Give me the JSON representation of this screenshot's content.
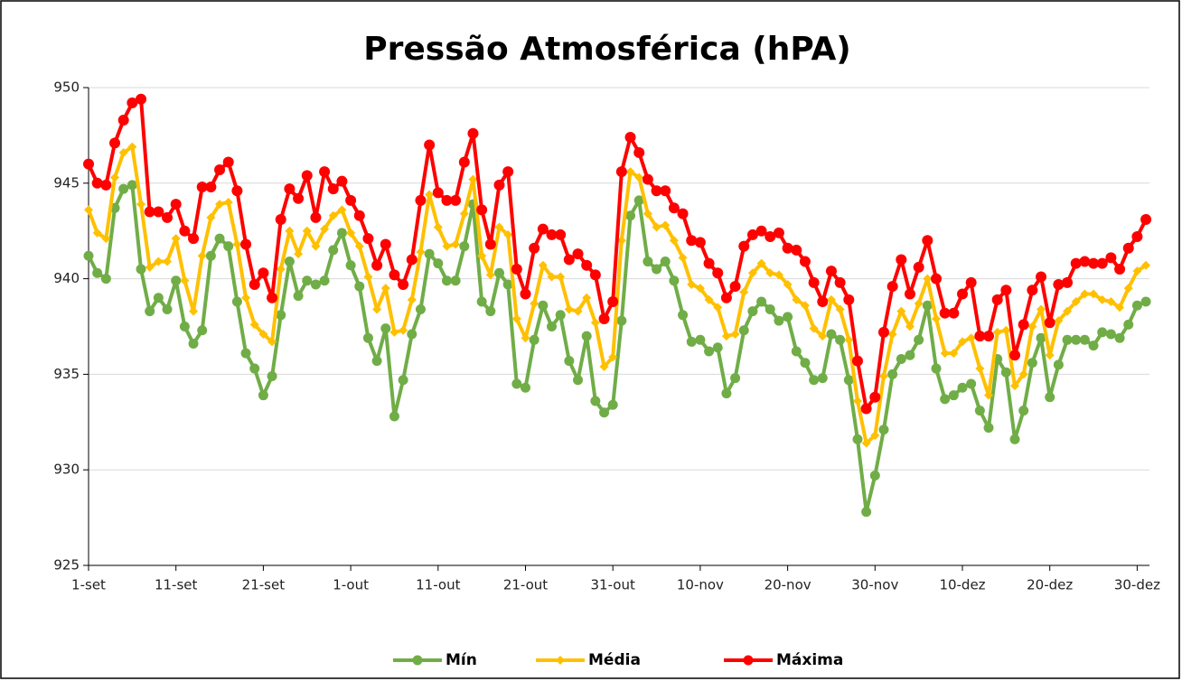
{
  "chart_data": {
    "type": "line",
    "title": "Pressão Atmosférica (hPA)",
    "categories": [
      "1-set",
      null,
      null,
      null,
      null,
      null,
      null,
      null,
      null,
      null,
      "11-set",
      null,
      null,
      null,
      null,
      null,
      null,
      null,
      null,
      null,
      "21-set",
      null,
      null,
      null,
      null,
      null,
      null,
      null,
      null,
      null,
      "1-out",
      null,
      null,
      null,
      null,
      null,
      null,
      null,
      null,
      null,
      "11-out",
      null,
      null,
      null,
      null,
      null,
      null,
      null,
      null,
      null,
      "21-out",
      null,
      null,
      null,
      null,
      null,
      null,
      null,
      null,
      null,
      "31-out",
      null,
      null,
      null,
      null,
      null,
      null,
      null,
      null,
      null,
      "10-nov",
      null,
      null,
      null,
      null,
      null,
      null,
      null,
      null,
      null,
      "20-nov",
      null,
      null,
      null,
      null,
      null,
      null,
      null,
      null,
      null,
      "30-nov",
      null,
      null,
      null,
      null,
      null,
      null,
      null,
      null,
      null,
      "10-dez",
      null,
      null,
      null,
      null,
      null,
      null,
      null,
      null,
      null,
      "20-dez",
      null,
      null,
      null,
      null,
      null,
      null,
      null,
      null,
      null,
      "30-dez",
      null
    ],
    "series": [
      {
        "name": "Mín",
        "color": "#70ad47",
        "marker": "circle",
        "values": [
          941.2,
          940.3,
          940.0,
          943.7,
          944.7,
          944.9,
          940.5,
          938.3,
          939.0,
          938.4,
          939.9,
          937.5,
          936.6,
          937.3,
          941.2,
          942.1,
          941.7,
          938.8,
          936.1,
          935.3,
          933.9,
          934.9,
          938.1,
          940.9,
          939.1,
          939.9,
          939.7,
          939.9,
          941.5,
          942.4,
          940.7,
          939.6,
          936.9,
          935.7,
          937.4,
          932.8,
          934.7,
          937.1,
          938.4,
          941.3,
          940.8,
          939.9,
          939.9,
          941.7,
          943.9,
          938.8,
          938.3,
          940.3,
          939.7,
          934.5,
          934.3,
          936.8,
          938.6,
          937.5,
          938.1,
          935.7,
          934.7,
          937.0,
          933.6,
          933.0,
          933.4,
          937.8,
          943.3,
          944.1,
          940.9,
          940.5,
          940.9,
          939.9,
          938.1,
          936.7,
          936.8,
          936.2,
          936.4,
          934.0,
          934.8,
          937.3,
          938.3,
          938.8,
          938.4,
          937.8,
          938.0,
          936.2,
          935.6,
          934.7,
          934.8,
          937.1,
          936.8,
          934.7,
          931.6,
          927.8,
          929.7,
          932.1,
          935.0,
          935.8,
          936.0,
          936.8,
          938.6,
          935.3,
          933.7,
          933.9,
          934.3,
          934.5,
          933.1,
          932.2,
          935.8,
          935.1,
          931.6,
          933.1,
          935.6,
          936.9,
          933.8,
          935.5,
          936.8,
          936.8,
          936.8,
          936.5,
          937.2,
          937.1,
          936.9,
          937.6,
          938.6,
          938.8
        ]
      },
      {
        "name": "Média",
        "color": "#ffc000",
        "marker": "diamond",
        "values": [
          943.6,
          942.4,
          942.1,
          945.3,
          946.6,
          946.9,
          943.9,
          940.6,
          940.9,
          940.9,
          942.1,
          939.9,
          938.3,
          941.2,
          943.2,
          943.9,
          944.0,
          941.8,
          939.0,
          937.6,
          937.1,
          936.7,
          940.5,
          942.5,
          941.3,
          942.5,
          941.7,
          942.6,
          943.3,
          943.6,
          942.4,
          941.7,
          940.1,
          938.4,
          939.5,
          937.2,
          937.3,
          938.9,
          941.4,
          944.4,
          942.7,
          941.7,
          941.8,
          943.4,
          945.2,
          941.2,
          940.2,
          942.7,
          942.3,
          937.9,
          936.9,
          938.7,
          940.7,
          940.1,
          940.1,
          938.4,
          938.3,
          939.0,
          937.7,
          935.4,
          935.9,
          942.0,
          945.6,
          945.3,
          943.4,
          942.7,
          942.8,
          942.0,
          941.1,
          939.7,
          939.5,
          938.9,
          938.5,
          937.0,
          937.1,
          939.3,
          940.3,
          940.8,
          940.3,
          940.2,
          939.7,
          938.9,
          938.6,
          937.4,
          937.0,
          938.9,
          938.4,
          936.8,
          933.6,
          931.4,
          931.8,
          934.9,
          937.1,
          938.3,
          937.5,
          938.7,
          940.0,
          937.9,
          936.1,
          936.1,
          936.7,
          936.9,
          935.3,
          933.9,
          937.2,
          937.3,
          934.4,
          935.0,
          937.5,
          938.4,
          936.0,
          937.8,
          938.3,
          938.8,
          939.2,
          939.2,
          938.9,
          938.8,
          938.5,
          939.5,
          940.4,
          940.7
        ]
      },
      {
        "name": "Máxima",
        "color": "#ff0000",
        "marker": "circle",
        "values": [
          946.0,
          945.0,
          944.9,
          947.1,
          948.3,
          949.2,
          949.4,
          943.5,
          943.5,
          943.2,
          943.9,
          942.5,
          942.1,
          944.8,
          944.8,
          945.7,
          946.1,
          944.6,
          941.8,
          939.7,
          940.3,
          939.0,
          943.1,
          944.7,
          944.2,
          945.4,
          943.2,
          945.6,
          944.7,
          945.1,
          944.1,
          943.3,
          942.1,
          940.7,
          941.8,
          940.2,
          939.7,
          941.0,
          944.1,
          947.0,
          944.5,
          944.1,
          944.1,
          946.1,
          947.6,
          943.6,
          941.8,
          944.9,
          945.6,
          940.5,
          939.2,
          941.6,
          942.6,
          942.3,
          942.3,
          941.0,
          941.3,
          940.7,
          940.2,
          937.9,
          938.8,
          945.6,
          947.4,
          946.6,
          945.2,
          944.6,
          944.6,
          943.7,
          943.4,
          942.0,
          941.9,
          940.8,
          940.3,
          939.0,
          939.6,
          941.7,
          942.3,
          942.5,
          942.2,
          942.4,
          941.6,
          941.5,
          940.9,
          939.8,
          938.8,
          940.4,
          939.8,
          938.9,
          935.7,
          933.2,
          933.8,
          937.2,
          939.6,
          941.0,
          939.2,
          940.6,
          942.0,
          940.0,
          938.2,
          938.2,
          939.2,
          939.8,
          937.0,
          937.0,
          938.9,
          939.4,
          936.0,
          937.6,
          939.4,
          940.1,
          937.7,
          939.7,
          939.8,
          940.8,
          940.9,
          940.8,
          940.8,
          941.1,
          940.5,
          941.6,
          942.2,
          943.1
        ]
      }
    ],
    "ylim": [
      925,
      950
    ],
    "yticks": [
      925,
      930,
      935,
      940,
      945,
      950
    ],
    "grid": true,
    "legend": "bottom"
  }
}
